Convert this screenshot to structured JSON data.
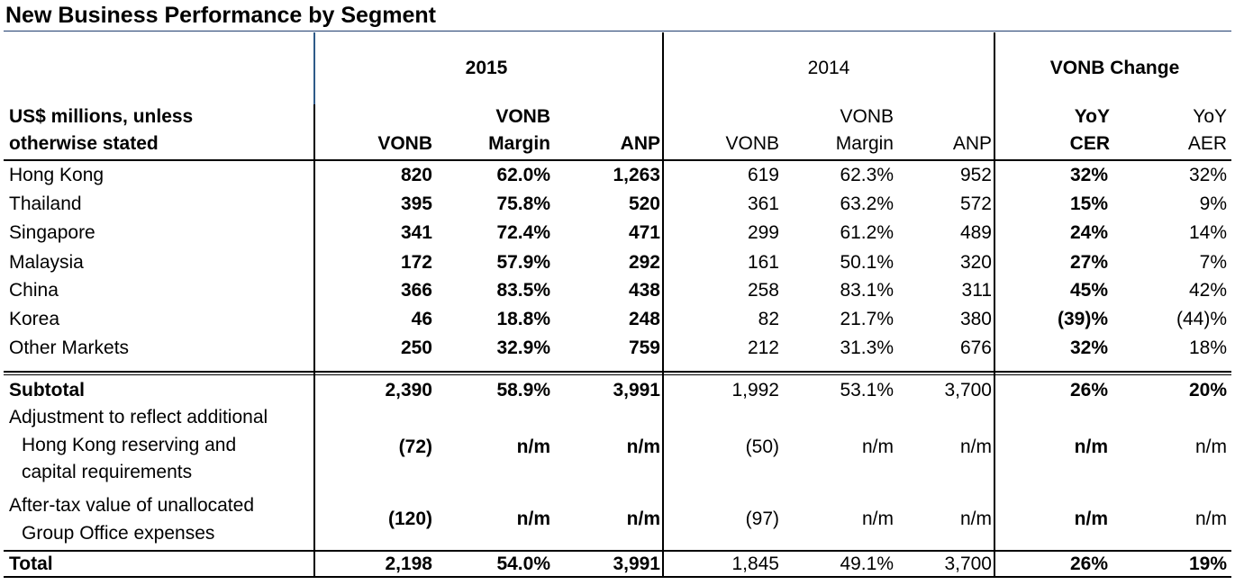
{
  "title": "New Business Performance by Segment",
  "header": {
    "row_label_line1": "US$ millions, unless",
    "row_label_line2": "otherwise stated",
    "group_2015": "2015",
    "group_2014": "2014",
    "group_change": "VONB Change",
    "vonb": "VONB",
    "vonb_margin_line1": "VONB",
    "vonb_margin_line2": "Margin",
    "anp": "ANP",
    "yoy_line1": "YoY",
    "cer": "CER",
    "aer": "AER"
  },
  "rows": [
    {
      "label": "Hong Kong",
      "v15": "820",
      "m15": "62.0%",
      "a15": "1,263",
      "v14": "619",
      "m14": "62.3%",
      "a14": "952",
      "cer": "32%",
      "aer": "32%"
    },
    {
      "label": "Thailand",
      "v15": "395",
      "m15": "75.8%",
      "a15": "520",
      "v14": "361",
      "m14": "63.2%",
      "a14": "572",
      "cer": "15%",
      "aer": "9%"
    },
    {
      "label": "Singapore",
      "v15": "341",
      "m15": "72.4%",
      "a15": "471",
      "v14": "299",
      "m14": "61.2%",
      "a14": "489",
      "cer": "24%",
      "aer": "14%"
    },
    {
      "label": "Malaysia",
      "v15": "172",
      "m15": "57.9%",
      "a15": "292",
      "v14": "161",
      "m14": "50.1%",
      "a14": "320",
      "cer": "27%",
      "aer": "7%"
    },
    {
      "label": "China",
      "v15": "366",
      "m15": "83.5%",
      "a15": "438",
      "v14": "258",
      "m14": "83.1%",
      "a14": "311",
      "cer": "45%",
      "aer": "42%"
    },
    {
      "label": "Korea",
      "v15": "46",
      "m15": "18.8%",
      "a15": "248",
      "v14": "82",
      "m14": "21.7%",
      "a14": "380",
      "cer": "(39)%",
      "aer": "(44)%"
    },
    {
      "label": "Other Markets",
      "v15": "250",
      "m15": "32.9%",
      "a15": "759",
      "v14": "212",
      "m14": "31.3%",
      "a14": "676",
      "cer": "32%",
      "aer": "18%"
    }
  ],
  "subtotal": {
    "label": "Subtotal",
    "v15": "2,390",
    "m15": "58.9%",
    "a15": "3,991",
    "v14": "1,992",
    "m14": "53.1%",
    "a14": "3,700",
    "cer": "26%",
    "aer": "20%"
  },
  "adjustment": {
    "label_line1": "Adjustment to reflect additional",
    "label_line2": "Hong Kong reserving and",
    "label_line3": "capital requirements",
    "v15": "(72)",
    "m15": "n/m",
    "a15": "n/m",
    "v14": "(50)",
    "m14": "n/m",
    "a14": "n/m",
    "cer": "n/m",
    "aer": "n/m"
  },
  "aftertax": {
    "label_line1": "After-tax value of unallocated",
    "label_line2": "Group Office expenses",
    "v15": "(120)",
    "m15": "n/m",
    "a15": "n/m",
    "v14": "(97)",
    "m14": "n/m",
    "a14": "n/m",
    "cer": "n/m",
    "aer": "n/m"
  },
  "total": {
    "label": "Total",
    "v15": "2,198",
    "m15": "54.0%",
    "a15": "3,991",
    "v14": "1,845",
    "m14": "49.1%",
    "a14": "3,700",
    "cer": "26%",
    "aer": "19%"
  }
}
